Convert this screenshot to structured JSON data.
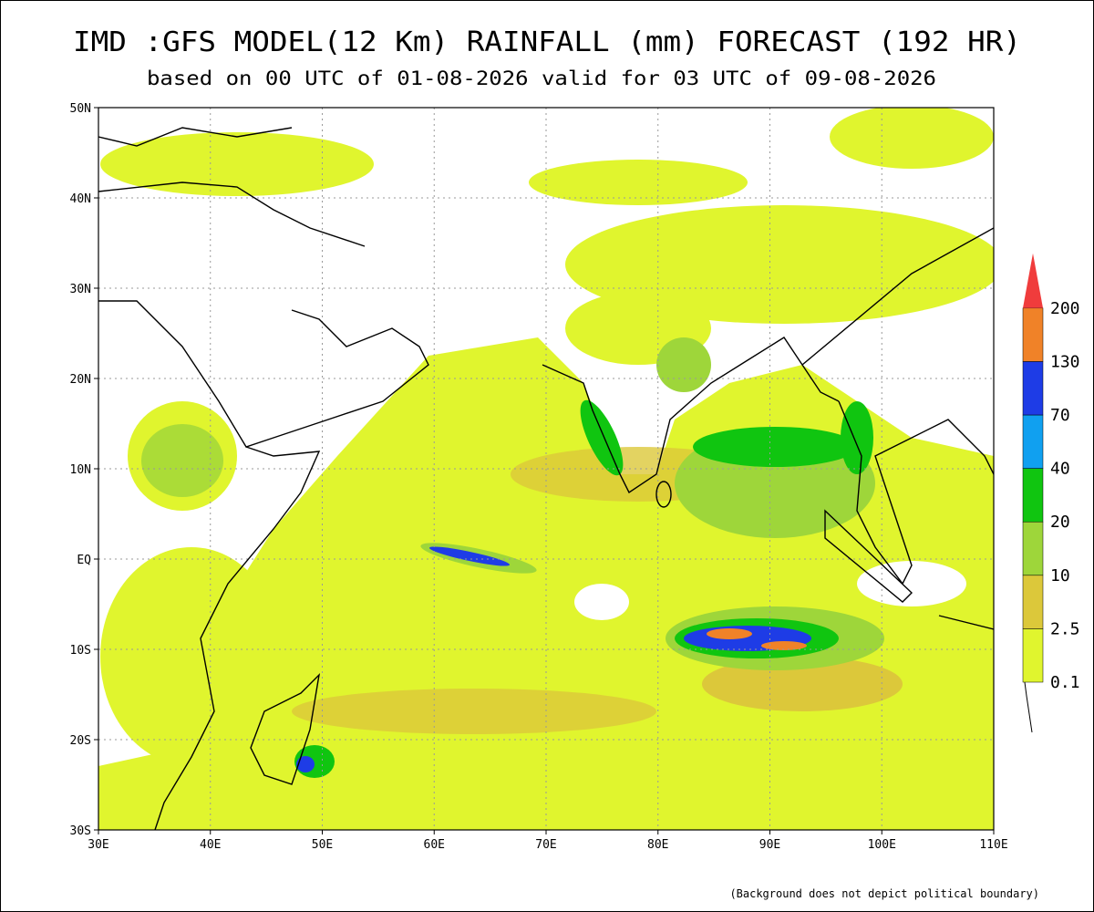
{
  "header": {
    "title": "IMD :GFS MODEL(12 Km) RAINFALL (mm) FORECAST (192 HR)",
    "subtitle": "based on 00 UTC of 01-08-2026 valid for 03 UTC of 09-08-2026"
  },
  "map": {
    "lon_range": [
      30,
      110
    ],
    "lat_range": [
      -30,
      50
    ],
    "lon_ticks": [
      {
        "value": 30,
        "label": "30E"
      },
      {
        "value": 40,
        "label": "40E"
      },
      {
        "value": 50,
        "label": "50E"
      },
      {
        "value": 60,
        "label": "60E"
      },
      {
        "value": 70,
        "label": "70E"
      },
      {
        "value": 80,
        "label": "80E"
      },
      {
        "value": 90,
        "label": "90E"
      },
      {
        "value": 100,
        "label": "100E"
      },
      {
        "value": 110,
        "label": "110E"
      }
    ],
    "lat_ticks": [
      {
        "value": 50,
        "label": "50N"
      },
      {
        "value": 40,
        "label": "40N"
      },
      {
        "value": 30,
        "label": "30N"
      },
      {
        "value": 20,
        "label": "20N"
      },
      {
        "value": 10,
        "label": "10N"
      },
      {
        "value": 0,
        "label": "EQ"
      },
      {
        "value": -10,
        "label": "10S"
      },
      {
        "value": -20,
        "label": "20S"
      },
      {
        "value": -30,
        "label": "30S"
      }
    ]
  },
  "legend": {
    "levels": [
      0.1,
      2.5,
      10,
      20,
      40,
      70,
      130,
      200
    ],
    "colors": [
      "#e0f52e",
      "#dcc83a",
      "#9ed63a",
      "#10c510",
      "#10a0f0",
      "#1e3ce6",
      "#f08228",
      "#f03c3c"
    ]
  },
  "footnote": "(Background does not depict political boundary)"
}
